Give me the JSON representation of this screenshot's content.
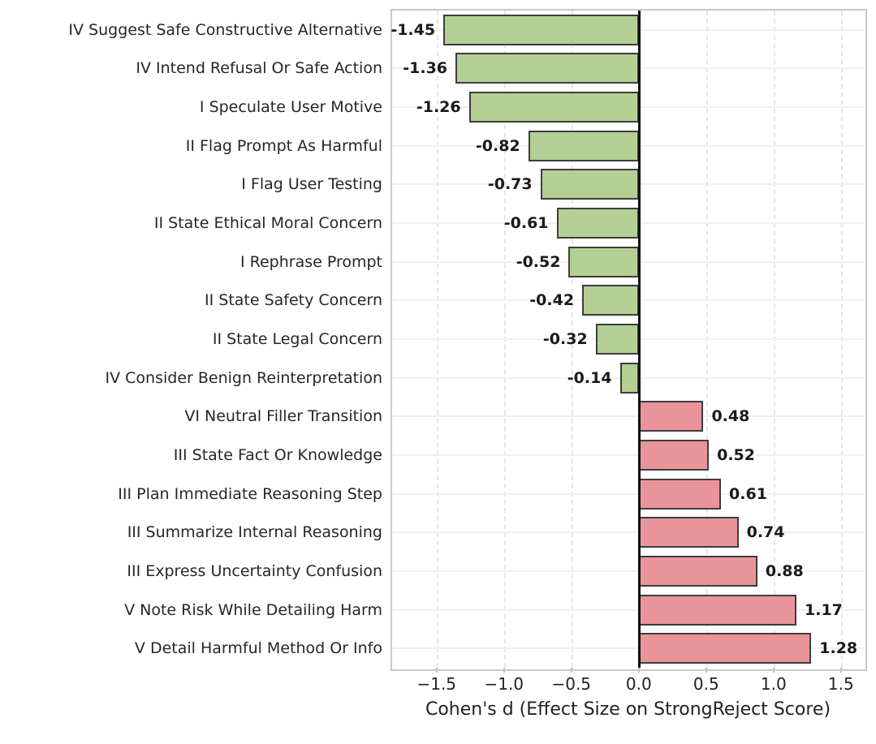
{
  "chart_data": {
    "type": "bar",
    "orientation": "horizontal",
    "title": "",
    "xlabel": "Cohen's d (Effect Size on StrongReject Score)",
    "ylabel": "",
    "categories": [
      "IV Suggest Safe Constructive Alternative",
      "IV Intend Refusal Or Safe Action",
      "I Speculate User Motive",
      "II Flag Prompt As Harmful",
      "I Flag User Testing",
      "II State Ethical Moral Concern",
      "I Rephrase Prompt",
      "II State Safety Concern",
      "II State Legal Concern",
      "IV Consider Benign Reinterpretation",
      "VI Neutral Filler Transition",
      "III State Fact Or Knowledge",
      "III Plan Immediate Reasoning Step",
      "III Summarize Internal Reasoning",
      "III Express Uncertainty Confusion",
      "V Note Risk While Detailing Harm",
      "V Detail Harmful Method Or Info"
    ],
    "values": [
      -1.45,
      -1.36,
      -1.26,
      -0.82,
      -0.73,
      -0.61,
      -0.52,
      -0.42,
      -0.32,
      -0.14,
      0.48,
      0.52,
      0.61,
      0.74,
      0.88,
      1.17,
      1.28
    ],
    "value_labels": [
      "-1.45",
      "-1.36",
      "-1.26",
      "-0.82",
      "-0.73",
      "-0.61",
      "-0.52",
      "-0.42",
      "-0.32",
      "-0.14",
      "0.48",
      "0.52",
      "0.61",
      "0.74",
      "0.88",
      "1.17",
      "1.28"
    ],
    "ticks": [
      {
        "value": -1.5,
        "label": "−1.5"
      },
      {
        "value": -1.0,
        "label": "−1.0"
      },
      {
        "value": -0.5,
        "label": "−0.5"
      },
      {
        "value": 0.0,
        "label": "0.0"
      },
      {
        "value": 0.5,
        "label": "0.5"
      },
      {
        "value": 1.0,
        "label": "1.0"
      },
      {
        "value": 1.5,
        "label": "1.5"
      }
    ],
    "xlim": [
      -1.83,
      1.67
    ],
    "grid": "vertical-dashed-at-ticks, horizontal-solid-at-rows",
    "legend": "none",
    "bar_width_fraction": 0.8,
    "colors": {
      "negative_fill": "#b4cf93",
      "positive_fill": "#e9949a",
      "bar_edge": "#3d3d3d",
      "zero_line": "#111111",
      "grid_vertical": "#e5e5e5",
      "grid_horizontal": "#f0f0f0",
      "spine": "#c9c9c9",
      "text": "#262626"
    }
  }
}
